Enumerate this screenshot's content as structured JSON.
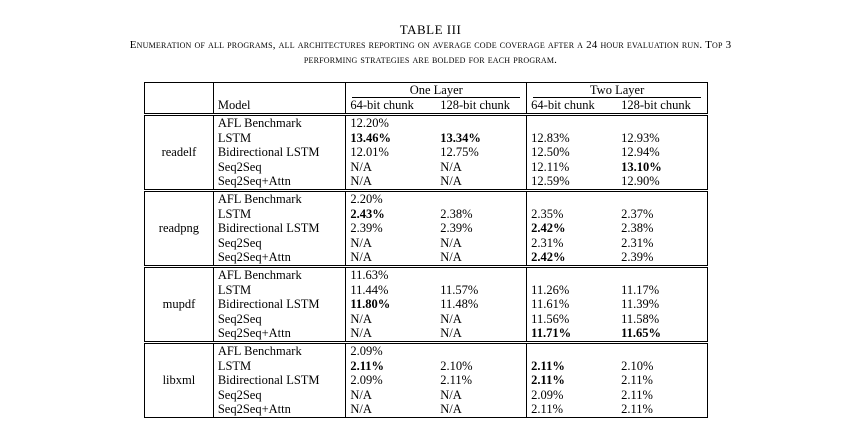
{
  "table_label": "TABLE III",
  "caption_line1": "Enumeration of all programs, all architectures reporting on average code coverage after a 24 hour evaluation run. Top 3",
  "caption_line2": "performing strategies are bolded for each program.",
  "header": {
    "group1": "One Layer",
    "group2": "Two Layer",
    "model": "Model",
    "col1": "64-bit chunk",
    "col2": "128-bit chunk",
    "col3": "64-bit chunk",
    "col4": "128-bit chunk"
  },
  "programs": [
    {
      "name": "readelf",
      "rows": [
        {
          "model": "AFL Benchmark",
          "v": [
            "12.20%",
            "",
            "",
            ""
          ],
          "bold": [
            false,
            false,
            false,
            false
          ]
        },
        {
          "model": "LSTM",
          "v": [
            "13.46%",
            "13.34%",
            "12.83%",
            "12.93%"
          ],
          "bold": [
            true,
            true,
            false,
            false
          ]
        },
        {
          "model": "Bidirectional LSTM",
          "v": [
            "12.01%",
            "12.75%",
            "12.50%",
            "12.94%"
          ],
          "bold": [
            false,
            false,
            false,
            false
          ]
        },
        {
          "model": "Seq2Seq",
          "v": [
            "N/A",
            "N/A",
            "12.11%",
            "13.10%"
          ],
          "bold": [
            false,
            false,
            false,
            true
          ]
        },
        {
          "model": "Seq2Seq+Attn",
          "v": [
            "N/A",
            "N/A",
            "12.59%",
            "12.90%"
          ],
          "bold": [
            false,
            false,
            false,
            false
          ]
        }
      ]
    },
    {
      "name": "readpng",
      "rows": [
        {
          "model": "AFL Benchmark",
          "v": [
            "2.20%",
            "",
            "",
            ""
          ],
          "bold": [
            false,
            false,
            false,
            false
          ]
        },
        {
          "model": "LSTM",
          "v": [
            "2.43%",
            "2.38%",
            "2.35%",
            "2.37%"
          ],
          "bold": [
            true,
            false,
            false,
            false
          ]
        },
        {
          "model": "Bidirectional LSTM",
          "v": [
            "2.39%",
            "2.39%",
            "2.42%",
            "2.38%"
          ],
          "bold": [
            false,
            false,
            true,
            false
          ]
        },
        {
          "model": "Seq2Seq",
          "v": [
            "N/A",
            "N/A",
            "2.31%",
            "2.31%"
          ],
          "bold": [
            false,
            false,
            false,
            false
          ]
        },
        {
          "model": "Seq2Seq+Attn",
          "v": [
            "N/A",
            "N/A",
            "2.42%",
            "2.39%"
          ],
          "bold": [
            false,
            false,
            true,
            false
          ]
        }
      ]
    },
    {
      "name": "mupdf",
      "rows": [
        {
          "model": "AFL Benchmark",
          "v": [
            "11.63%",
            "",
            "",
            ""
          ],
          "bold": [
            false,
            false,
            false,
            false
          ]
        },
        {
          "model": "LSTM",
          "v": [
            "11.44%",
            "11.57%",
            "11.26%",
            "11.17%"
          ],
          "bold": [
            false,
            false,
            false,
            false
          ]
        },
        {
          "model": "Bidirectional LSTM",
          "v": [
            "11.80%",
            "11.48%",
            "11.61%",
            "11.39%"
          ],
          "bold": [
            true,
            false,
            false,
            false
          ]
        },
        {
          "model": "Seq2Seq",
          "v": [
            "N/A",
            "N/A",
            "11.56%",
            "11.58%"
          ],
          "bold": [
            false,
            false,
            false,
            false
          ]
        },
        {
          "model": "Seq2Seq+Attn",
          "v": [
            "N/A",
            "N/A",
            "11.71%",
            "11.65%"
          ],
          "bold": [
            false,
            false,
            true,
            true
          ]
        }
      ]
    },
    {
      "name": "libxml",
      "rows": [
        {
          "model": "AFL Benchmark",
          "v": [
            "2.09%",
            "",
            "",
            ""
          ],
          "bold": [
            false,
            false,
            false,
            false
          ]
        },
        {
          "model": "LSTM",
          "v": [
            "2.11%",
            "2.10%",
            "2.11%",
            "2.10%"
          ],
          "bold": [
            true,
            false,
            true,
            false
          ]
        },
        {
          "model": "Bidirectional LSTM",
          "v": [
            "2.09%",
            "2.11%",
            "2.11%",
            "2.11%"
          ],
          "bold": [
            false,
            false,
            true,
            false
          ]
        },
        {
          "model": "Seq2Seq",
          "v": [
            "N/A",
            "N/A",
            "2.09%",
            "2.11%"
          ],
          "bold": [
            false,
            false,
            false,
            false
          ]
        },
        {
          "model": "Seq2Seq+Attn",
          "v": [
            "N/A",
            "N/A",
            "2.11%",
            "2.11%"
          ],
          "bold": [
            false,
            false,
            false,
            false
          ]
        }
      ]
    }
  ]
}
